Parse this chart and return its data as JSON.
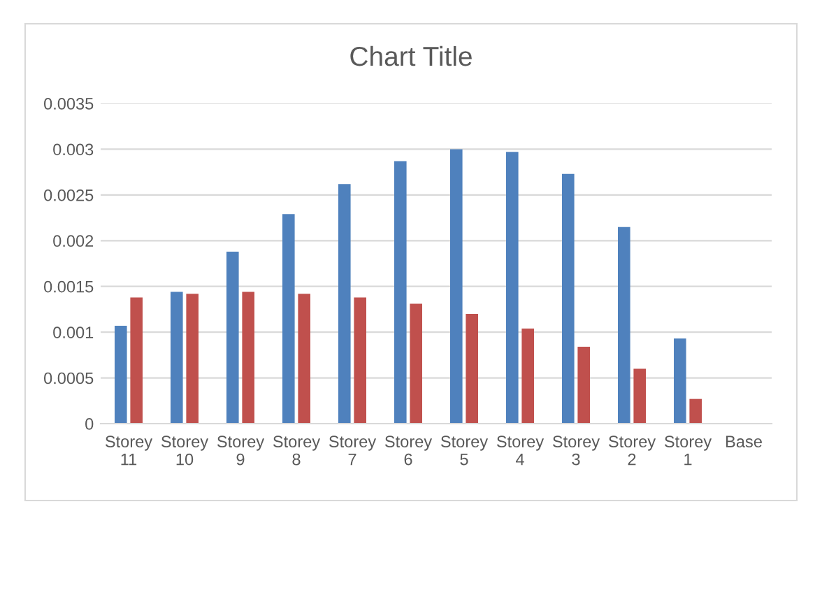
{
  "chart_data": {
    "type": "bar",
    "title": "Chart Title",
    "categories": [
      "Storey 11",
      "Storey 10",
      "Storey 9",
      "Storey 8",
      "Storey 7",
      "Storey 6",
      "Storey 5",
      "Storey 4",
      "Storey 3",
      "Storey 2",
      "Storey 1",
      "Base"
    ],
    "series": [
      {
        "color": "#4f81bd",
        "values": [
          0.00107,
          0.00144,
          0.00188,
          0.00229,
          0.00262,
          0.00287,
          0.003,
          0.00297,
          0.00273,
          0.00215,
          0.00093,
          0
        ]
      },
      {
        "color": "#c0504d",
        "values": [
          0.00138,
          0.00142,
          0.00144,
          0.00142,
          0.00138,
          0.00131,
          0.0012,
          0.00104,
          0.00084,
          0.0006,
          0.00027,
          0
        ]
      }
    ],
    "ylim": [
      0,
      0.0035
    ],
    "yticks": [
      0,
      0.0005,
      0.001,
      0.0015,
      0.002,
      0.0025,
      0.003,
      0.0035
    ],
    "grid": "y",
    "legend": false
  }
}
